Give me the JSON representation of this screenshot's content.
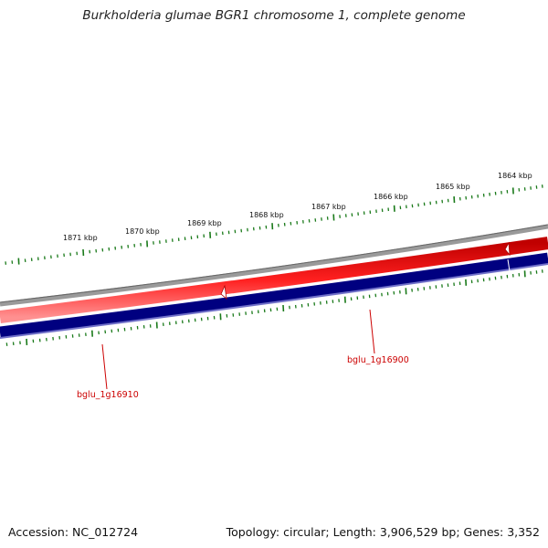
{
  "title": "Burkholderia glumae BGR1 chromosome 1, complete genome",
  "footer": {
    "accession": "Accession: NC_012724",
    "summary": "Topology: circular; Length: 3,906,529 bp; Genes: 3,352"
  },
  "colors": {
    "backbone": "#7a7a7a",
    "forward_gene": "#e00000",
    "reverse_gene": "#000080",
    "gene_label": "#cc0000",
    "tick": "#1a7a1a"
  },
  "scale": {
    "major_labels": [
      "1871 kbp",
      "1870 kbp",
      "1869 kbp",
      "1868 kbp",
      "1867 kbp",
      "1866 kbp",
      "1865 kbp",
      "1864 kbp"
    ]
  },
  "genes": [
    {
      "name": "bglu_1g16910"
    },
    {
      "name": "bglu_1g16900"
    }
  ]
}
